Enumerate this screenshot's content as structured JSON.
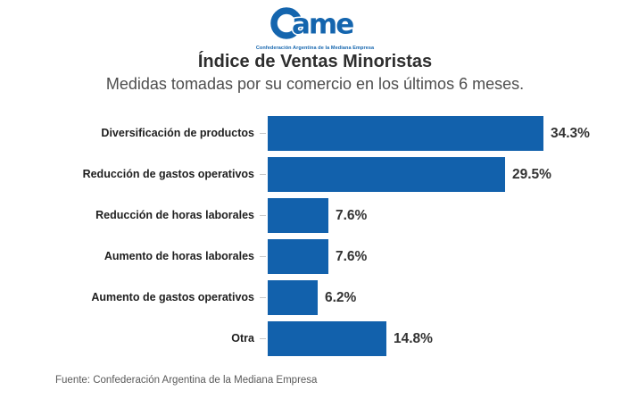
{
  "logo": {
    "brand_text": "ame",
    "tagline": "Confederación Argentina de la Mediana Empresa",
    "color": "#1465ae"
  },
  "header": {
    "title": "Índice de Ventas Minoristas",
    "subtitle": "Medidas tomadas por su comercio en los últimos 6 meses."
  },
  "chart_data": {
    "type": "bar",
    "orientation": "horizontal",
    "title": "Índice de Ventas Minoristas",
    "subtitle": "Medidas tomadas por su comercio en los últimos 6 meses.",
    "categories": [
      "Diversificación de productos",
      "Reducción de gastos operativos",
      "Reducción de horas laborales",
      "Aumento de horas laborales",
      "Aumento de gastos operativos",
      "Otra"
    ],
    "values": [
      34.3,
      29.5,
      7.6,
      7.6,
      6.2,
      14.8
    ],
    "value_labels": [
      "34.3%",
      "29.5%",
      "7.6%",
      "7.6%",
      "6.2%",
      "14.8%"
    ],
    "unit": "%",
    "xlim": [
      0,
      35
    ],
    "bar_color": "#1261ac",
    "grid": false,
    "legend": false,
    "value_label_position": "outside-end",
    "category_label_position": "left"
  },
  "footer": {
    "source": "Fuente: Confederación Argentina de la Mediana Empresa"
  }
}
